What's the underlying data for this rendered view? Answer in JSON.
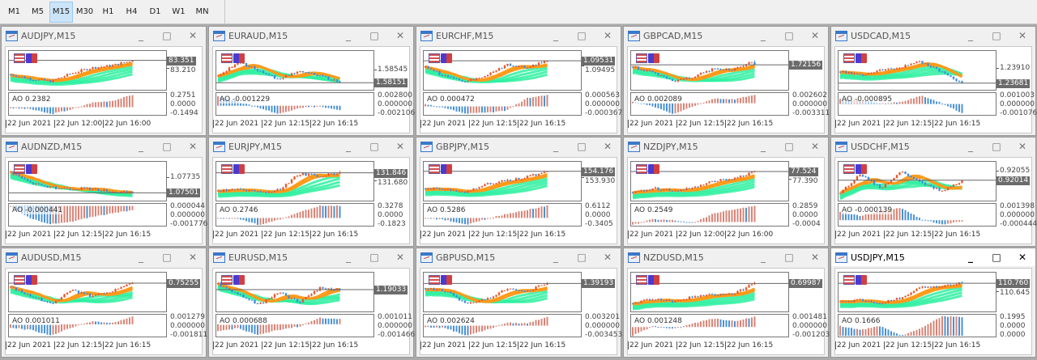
{
  "toolbar": {
    "timeframes": [
      "M1",
      "M5",
      "M15",
      "M30",
      "H1",
      "H4",
      "D1",
      "W1",
      "MN"
    ],
    "selected": "M15"
  },
  "window_buttons": {
    "minimize": "_",
    "maximize": "□",
    "close": "✕"
  },
  "colors": {
    "bull": "#e85a2e",
    "bear": "#3d8ede",
    "ma_fast": "#ff9a1a",
    "ma_slow": "#2ef0a0",
    "ao_up": "#d98577",
    "ao_down": "#4a92d6",
    "price_box": "#6b6b6b"
  },
  "charts": [
    {
      "title": "AUDJPY,M15",
      "price": "83.351",
      "level": "83.210",
      "ao_label": "AO 0.2382",
      "ao_axis": [
        "0.2751",
        "0.0000",
        "-0.1494"
      ],
      "dates": [
        "22 Jun 2021",
        "22 Jun 12:00",
        "22 Jun 16:00"
      ],
      "path": [
        83.1,
        83.02,
        82.98,
        83.12,
        83.22,
        83.26,
        83.35
      ],
      "ao": [
        -0.02,
        -0.04,
        -0.15,
        -0.05,
        0.1,
        0.14,
        0.27
      ]
    },
    {
      "title": "EURAUD,M15",
      "price": "1.58151",
      "level": "1.58545",
      "ao_label": "AO -0.001229",
      "ao_axis": [
        "0.002800",
        "0.000000",
        "-0.002106"
      ],
      "dates": [
        "22 Jun 2021",
        "22 Jun 12:15",
        "22 Jun 16:15"
      ],
      "path": [
        1.5835,
        1.5878,
        1.5852,
        1.5826,
        1.5852,
        1.5838,
        1.5815
      ],
      "ao": [
        0.0025,
        0.001,
        -0.0005,
        -0.0021,
        -0.0005,
        -0.0002,
        -0.0012
      ]
    },
    {
      "title": "EURCHF,M15",
      "price": "1.09531",
      "level": "1.09495",
      "ao_label": "AO 0.000472",
      "ao_axis": [
        "0.000563",
        "0.000000",
        "-0.000367"
      ],
      "dates": [
        "22 Jun 2021",
        "22 Jun 12:15",
        "22 Jun 16:15"
      ],
      "path": [
        1.0948,
        1.0941,
        1.0937,
        1.0942,
        1.095,
        1.0948,
        1.0953
      ],
      "ao": [
        0.0001,
        -0.0001,
        -0.00035,
        -0.0003,
        -0.0002,
        0.0004,
        0.00055
      ]
    },
    {
      "title": "GBPCAD,M15",
      "price": "1.72156",
      "level": "",
      "ao_label": "AO 0.002089",
      "ao_axis": [
        "0.002602",
        "0.000000",
        "-0.003311"
      ],
      "dates": [
        "22 Jun 2021",
        "22 Jun 12:15",
        "22 Jun 16:15"
      ],
      "path": [
        1.7212,
        1.7198,
        1.718,
        1.719,
        1.7208,
        1.7205,
        1.7225
      ],
      "ao": [
        0.0005,
        -0.001,
        -0.0033,
        -0.001,
        0.0015,
        0.0012,
        0.0026
      ]
    },
    {
      "title": "USDCAD,M15",
      "price": "1.23681",
      "level": "1.23910",
      "ao_label": "AO -0.000895",
      "ao_axis": [
        "0.001003",
        "0.000000",
        "-0.001076"
      ],
      "dates": [
        "22 Jun 2021",
        "22 Jun 12:15",
        "22 Jun 16:15"
      ],
      "path": [
        1.2385,
        1.238,
        1.2388,
        1.2392,
        1.24,
        1.2385,
        1.2368
      ],
      "ao": [
        0.0006,
        0.0004,
        0.0001,
        0.0002,
        0.0009,
        0.0001,
        -0.001
      ]
    },
    {
      "title": "AUDNZD,M15",
      "price": "1.07501",
      "level": "1.07735",
      "ao_label": "AO -0.000441",
      "ao_axis": [
        "0.000044",
        "0.000000",
        "-0.001776"
      ],
      "dates": [
        "22 Jun 2021",
        "22 Jun 12:15",
        "22 Jun 16:15"
      ],
      "path": [
        1.0782,
        1.0765,
        1.0758,
        1.0757,
        1.0756,
        1.0752,
        1.075
      ],
      "ao": [
        -0.0001,
        -0.0012,
        -0.0017,
        -0.0015,
        -0.001,
        -0.0007,
        -0.0004
      ]
    },
    {
      "title": "EURJPY,M15",
      "price": "131.846",
      "level": "131.680",
      "ao_label": "AO 0.2746",
      "ao_axis": [
        "0.3278",
        "0.0000",
        "-0.1823"
      ],
      "dates": [
        "22 Jun 2021",
        "22 Jun 12:15",
        "22 Jun 16:15"
      ],
      "path": [
        131.45,
        131.5,
        131.42,
        131.48,
        131.82,
        131.78,
        131.85
      ],
      "ao": [
        0.0,
        -0.02,
        -0.18,
        -0.05,
        0.15,
        0.32,
        0.32
      ]
    },
    {
      "title": "GBPJPY,M15",
      "price": "154.176",
      "level": "153.930",
      "ao_label": "AO 0.5286",
      "ao_axis": [
        "0.6112",
        "0.0000",
        "-0.3405"
      ],
      "dates": [
        "22 Jun 2021",
        "22 Jun 12:15",
        "22 Jun 16:15"
      ],
      "path": [
        153.5,
        153.45,
        153.35,
        153.65,
        153.8,
        153.95,
        154.18
      ],
      "ao": [
        -0.02,
        -0.1,
        -0.34,
        -0.05,
        0.2,
        0.4,
        0.6
      ]
    },
    {
      "title": "NZDJPY,M15",
      "price": "77.524",
      "level": "77.390",
      "ao_label": "AO 0.2549",
      "ao_axis": [
        "0.2859",
        "0.0000",
        "-0.0004"
      ],
      "dates": [
        "22 Jun 2021",
        "22 Jun 12:00",
        "22 Jun 16:00"
      ],
      "path": [
        77.15,
        77.22,
        77.18,
        77.22,
        77.35,
        77.4,
        77.52
      ],
      "ao": [
        -0.05,
        0.05,
        0.03,
        -0.01,
        0.15,
        0.22,
        0.28
      ]
    },
    {
      "title": "USDCHF,M15",
      "price": "0.92014",
      "level": "0.92055",
      "ao_label": "AO -0.000139",
      "ao_axis": [
        "0.001398",
        "0.000000",
        "-0.000444"
      ],
      "dates": [
        "22 Jun 2021",
        "22 Jun 12:15",
        "22 Jun 16:15"
      ],
      "path": [
        0.9196,
        0.9204,
        0.9198,
        0.9205,
        0.92,
        0.9197,
        0.9201
      ],
      "ao": [
        0.0008,
        0.0004,
        0.0009,
        0.0012,
        0.0001,
        -0.0004,
        -0.0001
      ]
    },
    {
      "title": "AUDUSD,M15",
      "price": "0.75255",
      "level": "",
      "ao_label": "AO 0.001011",
      "ao_axis": [
        "0.001279",
        "0.000000",
        "-0.001811"
      ],
      "dates": [
        "22 Jun 2021",
        "22 Jun 12:15",
        "22 Jun 16:15"
      ],
      "path": [
        0.752,
        0.7508,
        0.7498,
        0.7516,
        0.7508,
        0.7515,
        0.7526
      ],
      "ao": [
        -0.0005,
        -0.0009,
        -0.0018,
        -0.0005,
        0.0005,
        0.0002,
        0.0012
      ]
    },
    {
      "title": "EURUSD,M15",
      "price": "1.19033",
      "level": "",
      "ao_label": "AO 0.000688",
      "ao_axis": [
        "0.001011",
        "0.000000",
        "-0.001466"
      ],
      "dates": [
        "22 Jun 2021",
        "22 Jun 12:15",
        "22 Jun 16:15"
      ],
      "path": [
        1.191,
        1.1898,
        1.1885,
        1.19,
        1.1888,
        1.1905,
        1.1903
      ],
      "ao": [
        -0.0009,
        -0.0005,
        -0.0014,
        -0.0007,
        -0.0003,
        0.0008,
        0.0007
      ]
    },
    {
      "title": "GBPUSD,M15",
      "price": "1.39193",
      "level": "",
      "ao_label": "AO 0.002624",
      "ao_axis": [
        "0.003201",
        "0.000000",
        "-0.003453"
      ],
      "dates": [
        "22 Jun 2021",
        "22 Jun 12:15",
        "22 Jun 16:15"
      ],
      "path": [
        1.391,
        1.3905,
        1.388,
        1.389,
        1.3908,
        1.3905,
        1.392
      ],
      "ao": [
        -0.0005,
        -0.0008,
        -0.0034,
        -0.0015,
        0.001,
        0.0008,
        0.0031
      ]
    },
    {
      "title": "NZDUSD,M15",
      "price": "0.69987",
      "level": "",
      "ao_label": "AO 0.001248",
      "ao_axis": [
        "0.001481",
        "0.000000",
        "-0.001203"
      ],
      "dates": [
        "22 Jun 2021",
        "22 Jun 12:15",
        "22 Jun 16:15"
      ],
      "path": [
        0.6978,
        0.6983,
        0.698,
        0.6985,
        0.6987,
        0.6988,
        0.6999
      ],
      "ao": [
        -0.0012,
        0.0001,
        -0.0002,
        0.0005,
        0.0012,
        0.0008,
        0.0014
      ]
    },
    {
      "title": "USDJPY,M15",
      "price": "110.760",
      "level": "110.645",
      "ao_label": "AO 0.1666",
      "ao_axis": [
        "0.1995",
        "0.0000",
        "0.0000"
      ],
      "dates": [
        "22 Jun 2021",
        "22 Jun 12:15",
        "22 Jun 16:15"
      ],
      "path": [
        110.5,
        110.52,
        110.48,
        110.55,
        110.7,
        110.72,
        110.76
      ],
      "ao": [
        0.1,
        0.06,
        0.1,
        0.0,
        0.08,
        0.2,
        0.19
      ],
      "active": true
    }
  ]
}
